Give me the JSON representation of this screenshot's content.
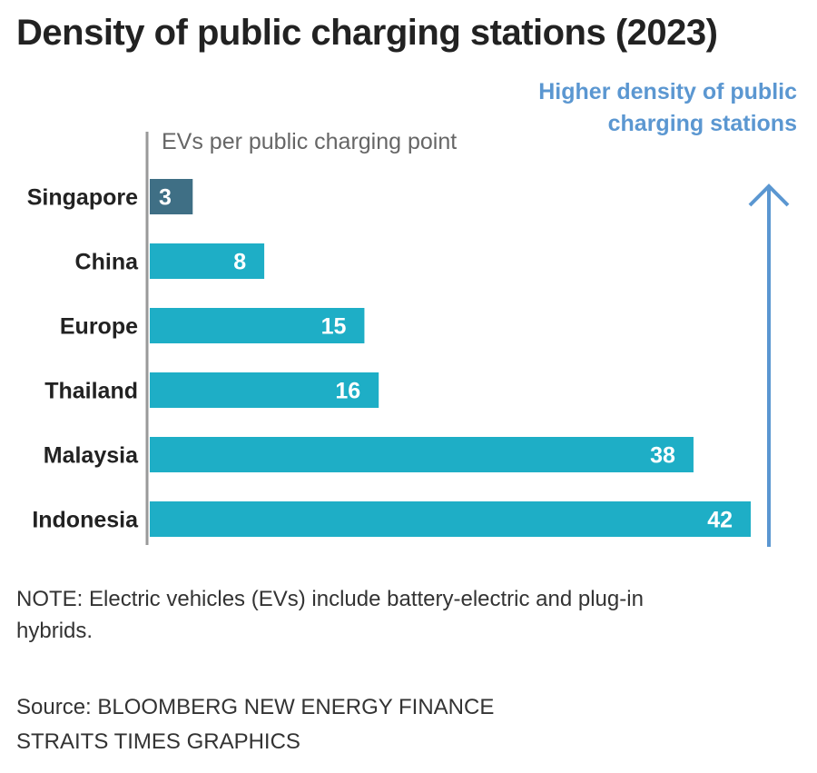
{
  "chart_data": {
    "type": "bar",
    "orientation": "horizontal",
    "title": "Density of public charging stations (2023)",
    "xlabel": "EVs per public charging point",
    "annotation": "Higher density of public charging stations",
    "categories": [
      "Singapore",
      "China",
      "Europe",
      "Thailand",
      "Malaysia",
      "Indonesia"
    ],
    "values": [
      3,
      8,
      15,
      16,
      38,
      42
    ],
    "xlim": [
      0,
      42
    ],
    "grid": false,
    "colors": {
      "highlight": "#3f6f85",
      "bar": "#1eaec6",
      "arrow": "#5b97d1",
      "axis": "#999999"
    },
    "highlight_category": "Singapore"
  },
  "note": "NOTE: Electric vehicles (EVs) include battery-electric and plug-in hybrids.",
  "source": "Source: BLOOMBERG NEW ENERGY FINANCE",
  "credit": "STRAITS TIMES GRAPHICS"
}
